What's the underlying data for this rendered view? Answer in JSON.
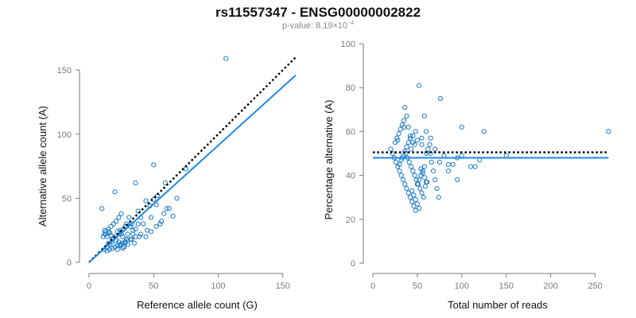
{
  "header": {
    "title": "rs11557347 - ENSG00000002822",
    "pvalue_prefix": "p-value: 8.19×10",
    "pvalue_exp": "−4"
  },
  "colors": {
    "points": "#1b7ac8",
    "fit": "#1e88e5",
    "reference": "#000000",
    "axis": "#7a7a7a"
  },
  "chart_data": [
    {
      "type": "scatter",
      "xlabel": "Reference allele count (G)",
      "ylabel": "Alternative allele count (A)",
      "xlim": [
        0,
        160
      ],
      "ylim": [
        0,
        160
      ],
      "xticks": [
        0,
        50,
        100,
        150
      ],
      "yticks": [
        0,
        50,
        100,
        150
      ],
      "lines": [
        {
          "style": "dotted",
          "color": "#000000",
          "x": [
            0,
            160
          ],
          "y": [
            0,
            160
          ]
        },
        {
          "style": "solid",
          "color": "#1e88e5",
          "x": [
            0,
            160
          ],
          "y": [
            0,
            146
          ]
        }
      ],
      "x": [
        106,
        50,
        20,
        36,
        59,
        62,
        68,
        75,
        10,
        15,
        18,
        20,
        22,
        24,
        25,
        26,
        27,
        28,
        29,
        30,
        31,
        32,
        33,
        34,
        35,
        36,
        38,
        40,
        42,
        45,
        48,
        50,
        52,
        55,
        58,
        60,
        65,
        12,
        14,
        16,
        18,
        20,
        22,
        24,
        26,
        28,
        30,
        12,
        13,
        14,
        15,
        16,
        17,
        18,
        19,
        21,
        23,
        25,
        27,
        29,
        11,
        12,
        13,
        15,
        17,
        19,
        21,
        23,
        25,
        14,
        16,
        18,
        20,
        22,
        24,
        26,
        28,
        30,
        32,
        34,
        36,
        38,
        40,
        44,
        48,
        52,
        56,
        44,
        39,
        33,
        27,
        47,
        53
      ],
      "y": [
        159,
        76,
        55,
        62,
        62,
        42,
        50,
        73,
        42,
        15,
        18,
        20,
        24,
        25,
        22,
        20,
        26,
        28,
        30,
        22,
        35,
        28,
        18,
        25,
        15,
        20,
        40,
        22,
        30,
        25,
        35,
        49,
        45,
        30,
        38,
        42,
        36,
        10,
        12,
        14,
        16,
        12,
        10,
        13,
        11,
        15,
        14,
        25,
        22,
        20,
        24,
        23,
        21,
        18,
        19,
        17,
        16,
        14,
        12,
        18,
        20,
        22,
        24,
        26,
        28,
        30,
        32,
        35,
        38,
        9,
        10,
        11,
        12,
        13,
        14,
        15,
        16,
        17,
        18,
        22,
        26,
        30,
        35,
        20,
        24,
        28,
        32,
        48,
        20,
        30,
        12,
        44,
        52
      ]
    },
    {
      "type": "scatter",
      "xlabel": "Total number of reads",
      "ylabel": "Percentage alternative (A)",
      "xlim": [
        0,
        270
      ],
      "ylim": [
        0,
        100
      ],
      "xticks": [
        0,
        50,
        100,
        150,
        200,
        250
      ],
      "yticks": [
        0,
        20,
        40,
        60,
        80,
        100
      ],
      "lines": [
        {
          "style": "dotted",
          "color": "#000000",
          "x": [
            0,
            265
          ],
          "y": [
            50.5,
            50.5
          ]
        },
        {
          "style": "solid",
          "color": "#1e88e5",
          "x": [
            0,
            265
          ],
          "y": [
            48,
            48
          ]
        }
      ],
      "x": [
        265,
        52,
        76,
        58,
        100,
        125,
        36,
        38,
        40,
        42,
        45,
        48,
        50,
        55,
        60,
        65,
        70,
        80,
        85,
        90,
        95,
        100,
        110,
        115,
        120,
        150,
        20,
        22,
        24,
        26,
        28,
        30,
        32,
        34,
        36,
        38,
        40,
        42,
        44,
        46,
        48,
        50,
        52,
        54,
        56,
        58,
        60,
        62,
        64,
        66,
        68,
        70,
        72,
        74,
        25,
        27,
        29,
        31,
        33,
        35,
        37,
        39,
        41,
        43,
        45,
        47,
        49,
        51,
        53,
        55,
        57,
        59,
        61,
        30,
        32,
        34,
        36,
        38,
        40,
        42,
        44,
        46,
        48,
        50,
        52,
        54,
        56,
        58,
        60,
        35,
        45,
        55,
        65,
        75,
        85,
        95,
        28,
        33,
        43,
        47
      ],
      "y": [
        60,
        81,
        75,
        67,
        62,
        60,
        71,
        67,
        62,
        58,
        55,
        60,
        56,
        57,
        60,
        57,
        52,
        49,
        45,
        45,
        48,
        49,
        44,
        44,
        47,
        49,
        52,
        50,
        48,
        46,
        44,
        42,
        40,
        38,
        36,
        34,
        32,
        30,
        28,
        26,
        24,
        36,
        38,
        40,
        42,
        44,
        50,
        52,
        54,
        46,
        42,
        38,
        34,
        30,
        55,
        57,
        59,
        61,
        63,
        65,
        50,
        48,
        46,
        44,
        42,
        40,
        38,
        36,
        34,
        32,
        30,
        35,
        37,
        45,
        47,
        49,
        51,
        53,
        55,
        57,
        33,
        31,
        29,
        27,
        25,
        43,
        41,
        39,
        37,
        62,
        58,
        54,
        50,
        46,
        42,
        38,
        56,
        48,
        52,
        54
      ]
    }
  ]
}
